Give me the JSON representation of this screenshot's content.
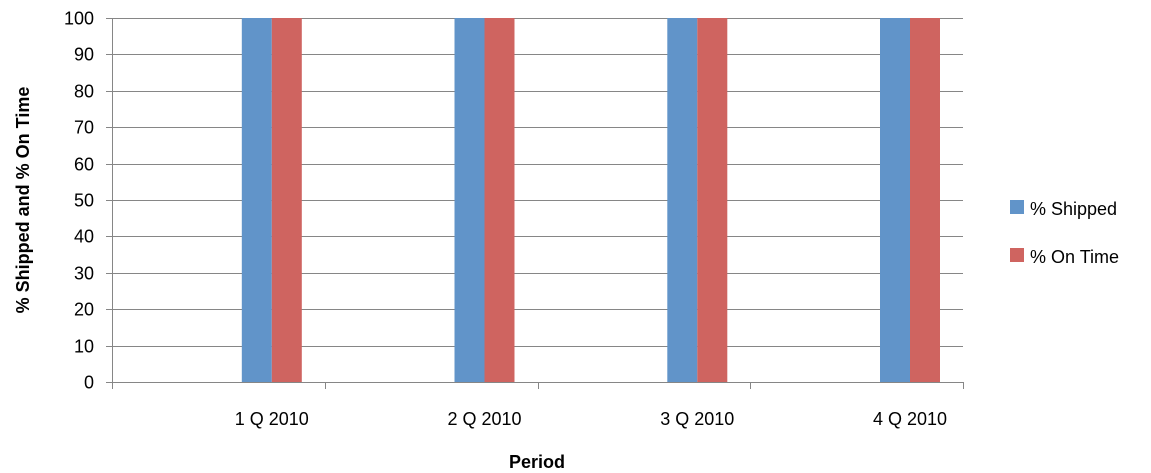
{
  "chart_data": {
    "type": "bar",
    "title": "",
    "xlabel": "Period",
    "ylabel": "% Shipped and % On Time",
    "categories": [
      "1 Q 2010",
      "2 Q 2010",
      "3 Q 2010",
      "4 Q 2010"
    ],
    "series": [
      {
        "name": "% Shipped",
        "values": [
          100,
          100,
          100,
          100
        ],
        "color": "#6194C9"
      },
      {
        "name": "% On Time",
        "values": [
          100,
          100,
          100,
          100
        ],
        "color": "#CF6460"
      }
    ],
    "ylim": [
      0,
      100
    ],
    "yticks": [
      0,
      10,
      20,
      30,
      40,
      50,
      60,
      70,
      80,
      90,
      100
    ],
    "grid": true,
    "legend_position": "right",
    "gridline_color": "#868686",
    "axis_color": "#868686"
  }
}
